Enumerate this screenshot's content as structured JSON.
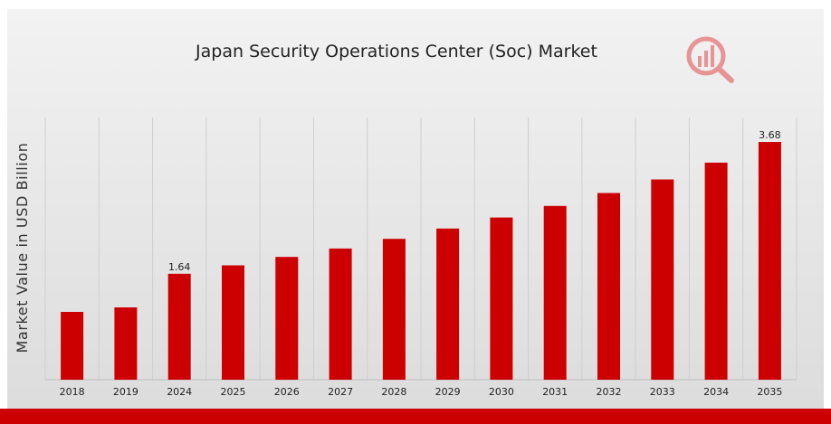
{
  "colors": {
    "bar": "#cc0000",
    "background_top": "#f2f2f2",
    "background_bottom": "#dcdcdc",
    "grid": "#cfcfcf",
    "footer_stripe": "#cc0000",
    "logo": "#e04a4a"
  },
  "logo": {
    "icon": "magnifier-bar-chart-icon"
  },
  "chart_data": {
    "type": "bar",
    "title": "Japan Security Operations Center (Soc) Market",
    "xlabel": "",
    "ylabel": "Market Value in USD Billion",
    "categories": [
      "2018",
      "2019",
      "2024",
      "2025",
      "2026",
      "2027",
      "2028",
      "2029",
      "2030",
      "2031",
      "2032",
      "2033",
      "2034",
      "2035"
    ],
    "values": [
      1.05,
      1.12,
      1.64,
      1.77,
      1.9,
      2.03,
      2.18,
      2.34,
      2.51,
      2.69,
      2.89,
      3.1,
      3.36,
      3.68
    ],
    "data_labels": [
      {
        "category": "2024",
        "text": "1.64"
      },
      {
        "category": "2035",
        "text": "3.68"
      }
    ],
    "ylim": [
      0,
      3.68
    ],
    "grid": "vertical",
    "legend": "none"
  }
}
